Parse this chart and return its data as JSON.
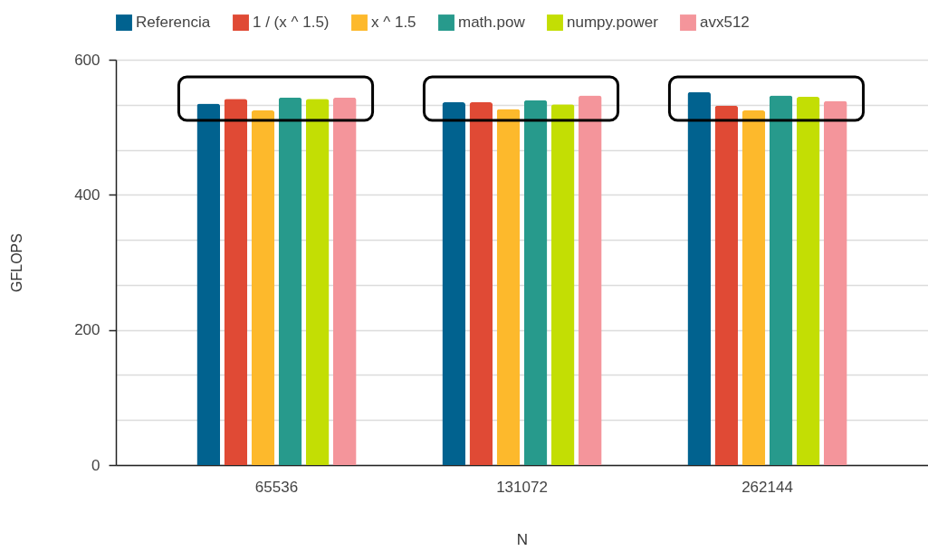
{
  "chart_data": {
    "type": "bar",
    "xlabel": "N",
    "ylabel": "GFLOPS",
    "categories": [
      "65536",
      "131072",
      "262144"
    ],
    "series": [
      {
        "name": "Referencia",
        "color": "#01628f",
        "values": [
          535,
          537,
          552
        ]
      },
      {
        "name": "1 / (x ^ 1.5)",
        "color": "#e04a35",
        "values": [
          542,
          537,
          532
        ]
      },
      {
        "name": "x ^ 1.5",
        "color": "#fdb92c",
        "values": [
          525,
          527,
          525
        ]
      },
      {
        "name": "math.pow",
        "color": "#279a8c",
        "values": [
          544,
          540,
          547
        ]
      },
      {
        "name": "numpy.power",
        "color": "#c3de04",
        "values": [
          542,
          534,
          545
        ]
      },
      {
        "name": "avx512",
        "color": "#f4959b",
        "values": [
          544,
          547,
          539
        ]
      }
    ],
    "ylim": [
      0,
      600
    ],
    "yticks": [
      0,
      {
        "value": 66.67,
        "label": null
      },
      {
        "value": 133.33,
        "label": null
      },
      200,
      {
        "value": 266.67,
        "label": null
      },
      {
        "value": 333.33,
        "label": null
      },
      400,
      {
        "value": 466.67,
        "label": null
      },
      {
        "value": 533.33,
        "label": null
      },
      600
    ],
    "grid": "y",
    "legend": "top"
  }
}
